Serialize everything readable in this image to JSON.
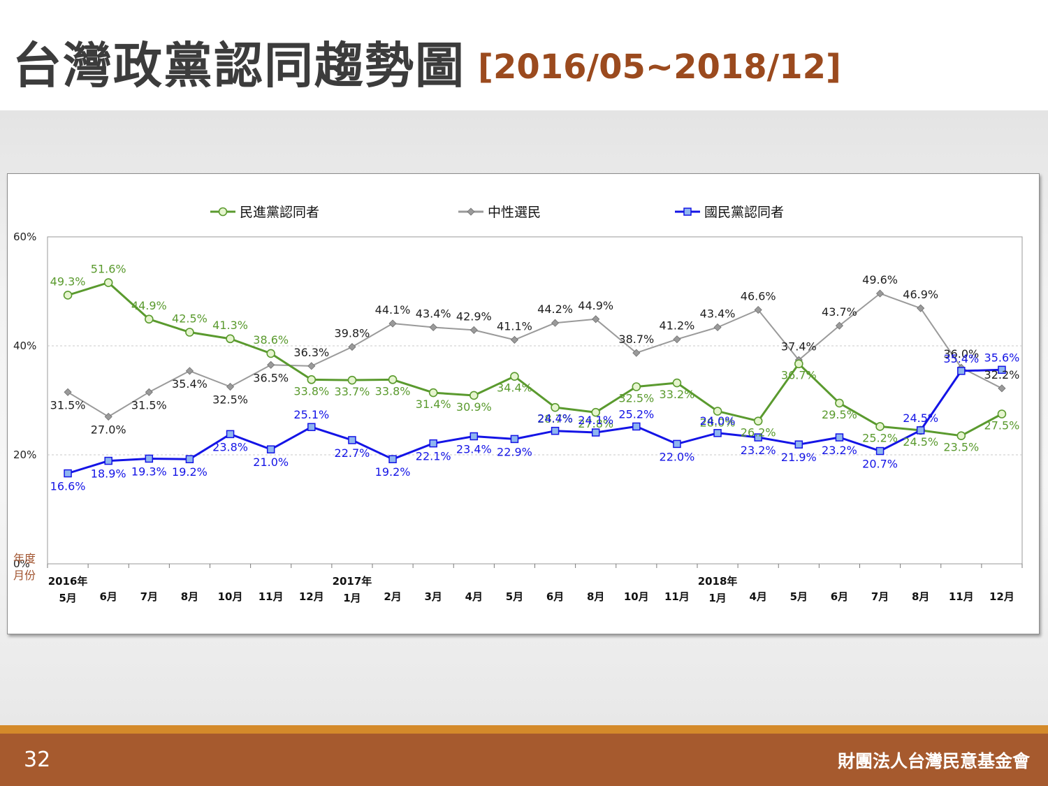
{
  "header": {
    "title": "台灣政黨認同趨勢圖",
    "subtitle": "[2016/05~2018/12]"
  },
  "footer": {
    "page_number": "32",
    "organization": "財團法人台灣民意基金會"
  },
  "chart_data": {
    "type": "line",
    "y_axis": {
      "min": 0,
      "max": 60,
      "ticks": [
        "60%",
        "40%",
        "20%",
        "0%"
      ],
      "tick_values": [
        60,
        40,
        20,
        0
      ],
      "label_year": "年度",
      "label_month": "月份",
      "gridlines": true
    },
    "legend": {
      "position": "top"
    },
    "categories": [
      "5月",
      "6月",
      "7月",
      "8月",
      "10月",
      "11月",
      "12月",
      "1月",
      "2月",
      "3月",
      "4月",
      "5月",
      "6月",
      "8月",
      "10月",
      "11月",
      "1月",
      "4月",
      "5月",
      "6月",
      "7月",
      "8月",
      "11月",
      "12月"
    ],
    "year_labels": [
      {
        "index": 0,
        "label": "2016年"
      },
      {
        "index": 7,
        "label": "2017年"
      },
      {
        "index": 16,
        "label": "2018年"
      }
    ],
    "series": [
      {
        "name": "民進黨認同者",
        "color": "#5a9a2e",
        "marker": "circle",
        "values": [
          49.3,
          51.6,
          44.9,
          42.5,
          41.3,
          38.6,
          33.8,
          33.7,
          33.8,
          31.4,
          30.9,
          34.4,
          28.7,
          27.8,
          32.5,
          33.2,
          28.0,
          26.2,
          36.7,
          29.5,
          25.2,
          24.5,
          23.5,
          27.5
        ],
        "labels": [
          "49.3%",
          "51.6%",
          "44.9%",
          "42.5%",
          "41.3%",
          "38.6%",
          "33.8%",
          "33.7%",
          "33.8%",
          "31.4%",
          "30.9%",
          "34.4%",
          "28.7%",
          "27.8%",
          "32.5%",
          "33.2%",
          "28.0%",
          "26.2%",
          "36.7%",
          "29.5%",
          "25.2%",
          "24.5%",
          "23.5%",
          "27.5%"
        ]
      },
      {
        "name": "中性選民",
        "color": "#9a9a9a",
        "marker": "diamond",
        "values": [
          31.5,
          27.0,
          31.5,
          35.4,
          32.5,
          36.5,
          36.3,
          39.8,
          44.1,
          43.4,
          42.9,
          41.1,
          44.2,
          44.9,
          38.7,
          41.2,
          43.4,
          46.6,
          37.4,
          43.7,
          49.6,
          46.9,
          36.0,
          32.2
        ],
        "labels": [
          "31.5%",
          "27.0%",
          "31.5%",
          "35.4%",
          "32.5%",
          "36.5%",
          "36.3%",
          "39.8%",
          "44.1%",
          "43.4%",
          "42.9%",
          "41.1%",
          "44.2%",
          "44.9%",
          "38.7%",
          "41.2%",
          "43.4%",
          "46.6%",
          "37.4%",
          "43.7%",
          "49.6%",
          "46.9%",
          "36.0%",
          "32.2%"
        ]
      },
      {
        "name": "國民黨認同者",
        "color": "#1414e6",
        "marker": "square",
        "values": [
          16.6,
          18.9,
          19.3,
          19.2,
          23.8,
          21.0,
          25.1,
          22.7,
          19.2,
          22.1,
          23.4,
          22.9,
          24.4,
          24.1,
          25.2,
          22.0,
          24.0,
          23.2,
          21.9,
          23.2,
          20.7,
          24.5,
          35.4,
          35.6
        ],
        "labels": [
          "16.6%",
          "18.9%",
          "19.3%",
          "19.2%",
          "23.8%",
          "21.0%",
          "25.1%",
          "22.7%",
          "19.2%",
          "22.1%",
          "23.4%",
          "22.9%",
          "24.4%",
          "24.1%",
          "25.2%",
          "22.0%",
          "24.0%",
          "23.2%",
          "21.9%",
          "23.2%",
          "20.7%",
          "24.5%",
          "35.4%",
          "35.6%"
        ]
      }
    ]
  }
}
